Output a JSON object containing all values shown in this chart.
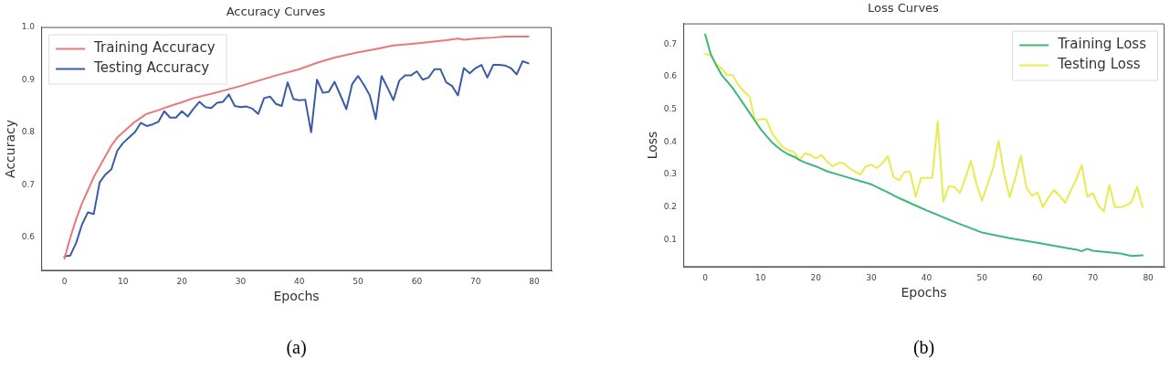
{
  "chart_data": [
    {
      "type": "line",
      "title": "Accuracy Curves",
      "xlabel": "Epochs",
      "ylabel": "Accuracy",
      "annotations": [
        "(a)"
      ],
      "xlim": [
        -3.95,
        82.95
      ],
      "xticks": [
        0,
        10,
        20,
        30,
        40,
        50,
        60,
        70,
        80
      ],
      "ylim": [
        0.537,
        1.0
      ],
      "yticks": [
        0.6,
        0.7,
        0.8,
        0.9,
        {
          "value": 1.0,
          "label": "1.0"
        }
      ],
      "grid": false,
      "legend": "top left",
      "marker": "none",
      "line_style": "solid",
      "series": [
        {
          "name": "Training Accuracy",
          "color": "#e8787a",
          "x": [
            0,
            1,
            2,
            3,
            4,
            5,
            6,
            7,
            8,
            9,
            10,
            12,
            14,
            16,
            18,
            20,
            22,
            25,
            28,
            30,
            33,
            36,
            40,
            43,
            46,
            50,
            53,
            56,
            60,
            65,
            67,
            68,
            70,
            73,
            75,
            79
          ],
          "values": [
            0.56,
            0.6,
            0.635,
            0.665,
            0.69,
            0.715,
            0.735,
            0.755,
            0.775,
            0.79,
            0.8,
            0.82,
            0.835,
            0.842,
            0.85,
            0.857,
            0.865,
            0.873,
            0.882,
            0.888,
            0.898,
            0.908,
            0.92,
            0.932,
            0.942,
            0.952,
            0.958,
            0.965,
            0.969,
            0.975,
            0.978,
            0.976,
            0.978,
            0.98,
            0.982,
            0.982
          ]
        },
        {
          "name": "Testing Accuracy",
          "color": "#3a5ba8",
          "x": [
            0,
            1,
            2,
            3,
            4,
            5,
            6,
            7,
            8,
            9,
            10,
            11,
            12,
            13,
            14,
            15,
            16,
            17,
            18,
            19,
            20,
            21,
            22,
            23,
            24,
            25,
            26,
            27,
            28,
            29,
            30,
            31,
            32,
            33,
            34,
            35,
            36,
            37,
            38,
            39,
            40,
            41,
            42,
            43,
            44,
            45,
            46,
            47,
            48,
            49,
            50,
            51,
            52,
            53,
            54,
            55,
            56,
            57,
            58,
            59,
            60,
            61,
            62,
            63,
            64,
            65,
            66,
            67,
            68,
            69,
            70,
            71,
            72,
            73,
            74,
            75,
            76,
            77,
            78,
            79
          ],
          "values": [
            0.564,
            0.566,
            0.59,
            0.625,
            0.648,
            0.645,
            0.705,
            0.72,
            0.73,
            0.765,
            0.78,
            0.79,
            0.8,
            0.818,
            0.812,
            0.815,
            0.82,
            0.84,
            0.828,
            0.828,
            0.84,
            0.83,
            0.845,
            0.858,
            0.848,
            0.846,
            0.856,
            0.858,
            0.872,
            0.85,
            0.848,
            0.849,
            0.845,
            0.835,
            0.865,
            0.868,
            0.854,
            0.85,
            0.895,
            0.863,
            0.861,
            0.862,
            0.8,
            0.9,
            0.875,
            0.877,
            0.896,
            0.87,
            0.844,
            0.892,
            0.907,
            0.89,
            0.87,
            0.825,
            0.907,
            0.885,
            0.861,
            0.898,
            0.908,
            0.908,
            0.916,
            0.9,
            0.904,
            0.92,
            0.92,
            0.895,
            0.888,
            0.87,
            0.922,
            0.912,
            0.922,
            0.928,
            0.904,
            0.928,
            0.928,
            0.927,
            0.922,
            0.91,
            0.935,
            0.931
          ]
        }
      ]
    },
    {
      "type": "line",
      "title": "Loss Curves",
      "xlabel": "Epochs",
      "ylabel": "Loss",
      "annotations": [
        "(b)"
      ],
      "xlim": [
        -3.95,
        82.95
      ],
      "xticks": [
        0,
        10,
        20,
        30,
        40,
        50,
        60,
        70,
        80
      ],
      "ylim": [
        0.016,
        0.764
      ],
      "yticks": [
        0.1,
        0.2,
        0.3,
        0.4,
        0.5,
        0.6,
        0.7
      ],
      "grid": false,
      "legend": "top right",
      "marker": "none",
      "line_style": "solid",
      "series": [
        {
          "name": "Training Loss",
          "color": "#3cb878",
          "x": [
            0,
            1,
            2,
            3,
            4,
            5,
            6,
            7,
            8,
            9,
            10,
            11,
            12,
            13,
            14,
            15,
            16,
            17,
            18,
            20,
            22,
            25,
            28,
            30,
            33,
            35,
            38,
            40,
            45,
            50,
            55,
            60,
            65,
            67,
            68,
            69,
            70,
            75,
            77,
            79
          ],
          "values": [
            0.73,
            0.67,
            0.635,
            0.605,
            0.585,
            0.565,
            0.54,
            0.515,
            0.49,
            0.465,
            0.44,
            0.42,
            0.4,
            0.385,
            0.372,
            0.362,
            0.355,
            0.345,
            0.337,
            0.325,
            0.31,
            0.295,
            0.28,
            0.27,
            0.245,
            0.228,
            0.205,
            0.19,
            0.155,
            0.122,
            0.105,
            0.091,
            0.075,
            0.07,
            0.065,
            0.072,
            0.066,
            0.058,
            0.05,
            0.052
          ]
        },
        {
          "name": "Testing Loss",
          "color": "#eaea50",
          "x": [
            0,
            1,
            2,
            3,
            4,
            5,
            6,
            7,
            8,
            9,
            10,
            11,
            12,
            13,
            14,
            15,
            16,
            17,
            18,
            19,
            20,
            21,
            22,
            23,
            24,
            25,
            26,
            27,
            28,
            29,
            30,
            31,
            32,
            33,
            34,
            35,
            36,
            37,
            38,
            39,
            40,
            41,
            42,
            43,
            44,
            45,
            46,
            47,
            48,
            49,
            50,
            51,
            52,
            53,
            54,
            55,
            56,
            57,
            58,
            59,
            60,
            61,
            62,
            63,
            64,
            65,
            66,
            67,
            68,
            69,
            70,
            71,
            72,
            73,
            74,
            75,
            76,
            77,
            78,
            79
          ],
          "values": [
            0.67,
            0.665,
            0.64,
            0.625,
            0.605,
            0.605,
            0.575,
            0.555,
            0.54,
            0.465,
            0.47,
            0.47,
            0.43,
            0.405,
            0.385,
            0.375,
            0.37,
            0.345,
            0.365,
            0.36,
            0.35,
            0.36,
            0.34,
            0.325,
            0.335,
            0.335,
            0.32,
            0.31,
            0.3,
            0.325,
            0.33,
            0.32,
            0.335,
            0.356,
            0.293,
            0.282,
            0.308,
            0.308,
            0.232,
            0.29,
            0.29,
            0.29,
            0.464,
            0.217,
            0.264,
            0.262,
            0.243,
            0.29,
            0.342,
            0.27,
            0.22,
            0.27,
            0.32,
            0.403,
            0.3,
            0.23,
            0.29,
            0.358,
            0.26,
            0.235,
            0.245,
            0.2,
            0.23,
            0.252,
            0.235,
            0.213,
            0.25,
            0.285,
            0.329,
            0.232,
            0.243,
            0.205,
            0.187,
            0.268,
            0.2,
            0.2,
            0.205,
            0.215,
            0.262,
            0.2
          ]
        }
      ]
    }
  ]
}
